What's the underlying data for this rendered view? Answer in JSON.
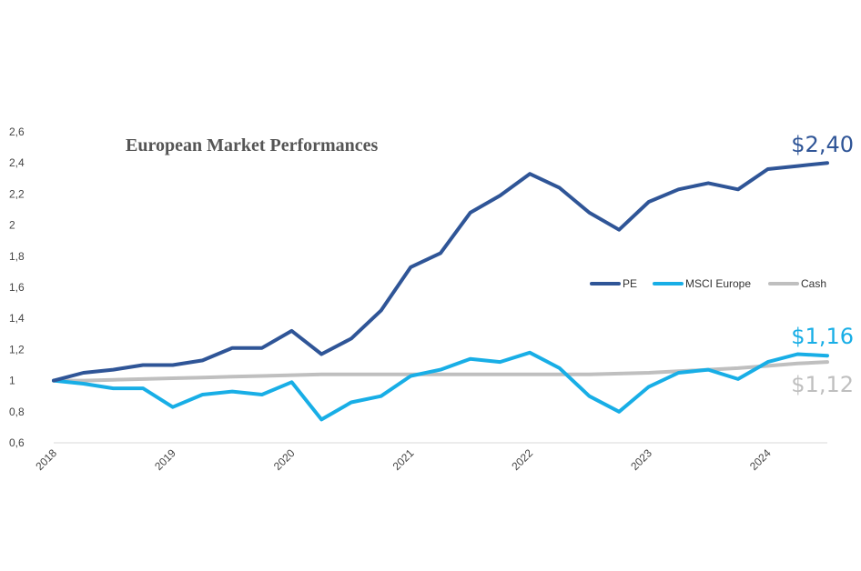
{
  "chart_data": {
    "type": "line",
    "title": "European Market Performances",
    "xlabel": "",
    "ylabel": "",
    "ylim": [
      0.6,
      2.6
    ],
    "yticks": [
      "0,6",
      "0,8",
      "1",
      "1,2",
      "1,4",
      "1,6",
      "1,8",
      "2",
      "2,2",
      "2,4",
      "2,6"
    ],
    "xticks": [
      "2018",
      "2019",
      "2020",
      "2021",
      "2022",
      "2023",
      "2024"
    ],
    "x": [
      "2018 Q1",
      "2018 Q2",
      "2018 Q3",
      "2018 Q4",
      "2019 Q1",
      "2019 Q2",
      "2019 Q3",
      "2019 Q4",
      "2020 Q1",
      "2020 Q2",
      "2020 Q3",
      "2020 Q4",
      "2021 Q1",
      "2021 Q2",
      "2021 Q3",
      "2021 Q4",
      "2022 Q1",
      "2022 Q2",
      "2022 Q3",
      "2022 Q4",
      "2023 Q1",
      "2023 Q2",
      "2023 Q3",
      "2023 Q4",
      "2024 Q1",
      "2024 Q2",
      "2024 Q3"
    ],
    "grid": false,
    "legend_position": "right",
    "series": [
      {
        "name": "PE",
        "color": "#2f5597",
        "end_label": "$2,40",
        "values": [
          1.0,
          1.05,
          1.07,
          1.1,
          1.1,
          1.13,
          1.21,
          1.21,
          1.32,
          1.17,
          1.27,
          1.45,
          1.73,
          1.82,
          2.08,
          2.19,
          2.33,
          2.24,
          2.08,
          1.97,
          2.15,
          2.23,
          2.27,
          2.23,
          2.36,
          2.38,
          2.4
        ]
      },
      {
        "name": "MSCI Europe",
        "color": "#18aee6",
        "end_label": "$1,16",
        "values": [
          1.0,
          0.98,
          0.95,
          0.95,
          0.83,
          0.91,
          0.93,
          0.91,
          0.99,
          0.75,
          0.86,
          0.9,
          1.03,
          1.07,
          1.14,
          1.12,
          1.18,
          1.08,
          0.9,
          0.8,
          0.96,
          1.05,
          1.07,
          1.01,
          1.12,
          1.17,
          1.16
        ]
      },
      {
        "name": "Cash",
        "color": "#bfbfbf",
        "end_label": "$1,12",
        "values": [
          1.0,
          1.0,
          1.005,
          1.01,
          1.015,
          1.02,
          1.025,
          1.03,
          1.035,
          1.04,
          1.04,
          1.04,
          1.04,
          1.04,
          1.04,
          1.04,
          1.04,
          1.04,
          1.04,
          1.045,
          1.05,
          1.06,
          1.07,
          1.08,
          1.095,
          1.11,
          1.12
        ]
      }
    ]
  }
}
